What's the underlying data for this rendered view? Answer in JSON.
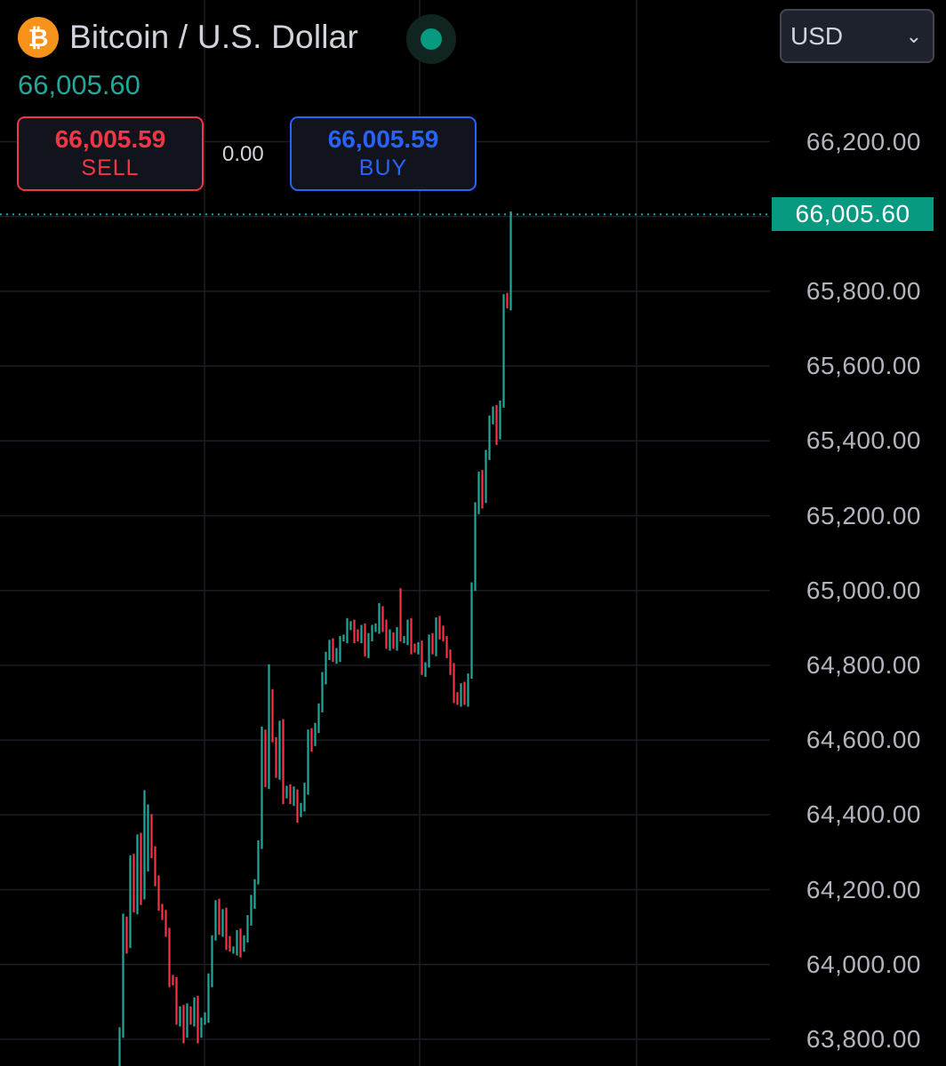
{
  "header": {
    "symbol_icon": "bitcoin-icon",
    "title": "Bitcoin / U.S. Dollar",
    "last_price": "66,005.60",
    "status": "market-open-dot"
  },
  "trade": {
    "sell_price": "66,005.59",
    "sell_label": "SELL",
    "spread": "0.00",
    "buy_price": "66,005.59",
    "buy_label": "BUY"
  },
  "currency_select": {
    "value": "USD",
    "icon": "chevron-down-icon"
  },
  "colors": {
    "background": "#000000",
    "up": "#26a69a",
    "down": "#f23645",
    "buy": "#2962ff",
    "price_tag": "#089981"
  },
  "chart_data": {
    "type": "ohlc",
    "title": "Bitcoin / U.S. Dollar",
    "ylim": [
      63730,
      66400
    ],
    "grid": true,
    "y_ticks": [
      66200,
      66000,
      65800,
      65600,
      65400,
      65200,
      65000,
      64800,
      64600,
      64400,
      64200,
      64000,
      63800
    ],
    "y_tick_labels": [
      "66,200.00",
      "66,000.00",
      "65,800.00",
      "65,600.00",
      "65,400.00",
      "65,200.00",
      "65,000.00",
      "64,800.00",
      "64,600.00",
      "64,400.00",
      "64,200.00",
      "64,000.00",
      "63,800.00"
    ],
    "last_price": 66005.6,
    "last_price_label": "66,005.60",
    "closes": [
      63700,
      63820,
      64120,
      64050,
      64280,
      64150,
      64340,
      64180,
      64260,
      64380,
      64300,
      64230,
      64150,
      64130,
      64090,
      63960,
      63950,
      63850,
      63880,
      63810,
      63880,
      63850,
      63900,
      63810,
      63850,
      63860,
      63960,
      64070,
      64160,
      64090,
      64140,
      64060,
      64040,
      64040,
      64080,
      64040,
      64070,
      64120,
      64170,
      64220,
      64320,
      64620,
      64490,
      64720,
      64600,
      64510,
      64640,
      64450,
      64470,
      64440,
      64460,
      64400,
      64420,
      64470,
      64620,
      64590,
      64630,
      64690,
      64770,
      64820,
      64860,
      64820,
      64830,
      64870,
      64870,
      64910,
      64910,
      64880,
      64870,
      64900,
      64840,
      64870,
      64900,
      64900,
      64950,
      64910,
      64850,
      64880,
      64860,
      64890,
      64870,
      64870,
      64910,
      64850,
      64840,
      64850,
      64790,
      64800,
      64870,
      64840,
      64920,
      64890,
      64870,
      64830,
      64790,
      64720,
      64700,
      64740,
      64710,
      64770,
      65010,
      65220,
      65310,
      65240,
      65360,
      65460,
      65480,
      65410,
      65500,
      65780,
      65770,
      66005.6
    ]
  }
}
